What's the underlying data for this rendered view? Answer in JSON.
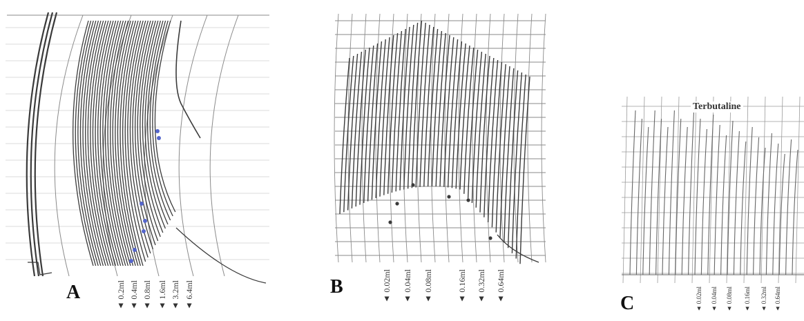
{
  "panels": [
    {
      "letter": "A",
      "doses": [
        "0.2ml",
        "0.4ml",
        "0.8ml",
        "1.6ml",
        "3.2ml",
        "6.4ml"
      ]
    },
    {
      "letter": "B",
      "doses": [
        "0.02ml",
        "0.04ml",
        "0.08ml",
        "0.16ml",
        "0.32ml",
        "0.64ml"
      ]
    },
    {
      "letter": "C",
      "title": "Terbutaline",
      "doses": [
        "0.02ml",
        "0.04ml",
        "0.08ml",
        "0.16ml",
        "0.32ml",
        "0.64ml"
      ]
    }
  ],
  "colors": {
    "trace": "#3a3a3a",
    "grid": "#8a8a8a",
    "dot": "#5566cc",
    "trace_c": "#666666"
  }
}
